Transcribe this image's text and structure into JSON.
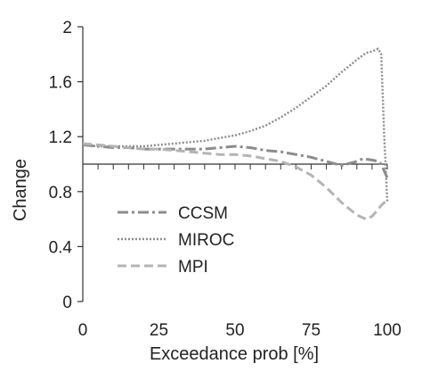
{
  "chart_data": {
    "type": "line",
    "xlabel": "Exceedance prob [%]",
    "ylabel": "Change",
    "xlim": [
      0,
      100
    ],
    "ylim": [
      0,
      2
    ],
    "x_ticks": [
      0,
      25,
      50,
      75,
      100
    ],
    "x_tick_labels": [
      "0",
      "25",
      "50",
      "75",
      "100"
    ],
    "y_ticks": [
      0,
      0.4,
      0.8,
      1.2,
      1.6,
      2
    ],
    "y_tick_labels": [
      "0",
      "0.4",
      "0.8",
      "1.2",
      "1.6",
      "2"
    ],
    "minor_x_ticks_every": 5,
    "reference_line": 1.0,
    "grid": false,
    "legend_position": "lower-left",
    "series": [
      {
        "name": "CCSM",
        "color": "#8c8c8c",
        "dash": "dashdot",
        "x": [
          0,
          5,
          10,
          15,
          20,
          25,
          30,
          35,
          40,
          45,
          50,
          55,
          60,
          65,
          70,
          75,
          80,
          85,
          90,
          92,
          95,
          97,
          98,
          99,
          100
        ],
        "y": [
          1.14,
          1.13,
          1.12,
          1.12,
          1.11,
          1.11,
          1.11,
          1.11,
          1.11,
          1.12,
          1.13,
          1.12,
          1.1,
          1.09,
          1.07,
          1.05,
          1.02,
          0.99,
          1.02,
          1.04,
          1.03,
          1.02,
          1.0,
          0.95,
          0.9
        ]
      },
      {
        "name": "MIROC",
        "color": "#8c8c8c",
        "dash": "dotted",
        "x": [
          0,
          5,
          10,
          15,
          20,
          25,
          30,
          35,
          40,
          45,
          50,
          55,
          60,
          65,
          70,
          75,
          80,
          85,
          90,
          93,
          95,
          97,
          98,
          99,
          100
        ],
        "y": [
          1.14,
          1.13,
          1.13,
          1.13,
          1.13,
          1.14,
          1.15,
          1.16,
          1.17,
          1.19,
          1.21,
          1.24,
          1.28,
          1.34,
          1.41,
          1.49,
          1.57,
          1.67,
          1.76,
          1.81,
          1.82,
          1.84,
          1.8,
          1.2,
          0.73
        ]
      },
      {
        "name": "MPI",
        "color": "#b4b4b4",
        "dash": "dashed",
        "x": [
          0,
          5,
          10,
          15,
          20,
          25,
          30,
          35,
          40,
          45,
          50,
          55,
          60,
          65,
          70,
          75,
          80,
          85,
          90,
          93,
          95,
          97,
          98,
          99,
          100
        ],
        "y": [
          1.15,
          1.14,
          1.13,
          1.12,
          1.11,
          1.11,
          1.1,
          1.09,
          1.08,
          1.07,
          1.07,
          1.06,
          1.04,
          1.02,
          0.98,
          0.92,
          0.83,
          0.72,
          0.63,
          0.6,
          0.62,
          0.67,
          0.7,
          0.72,
          0.74
        ]
      }
    ]
  }
}
